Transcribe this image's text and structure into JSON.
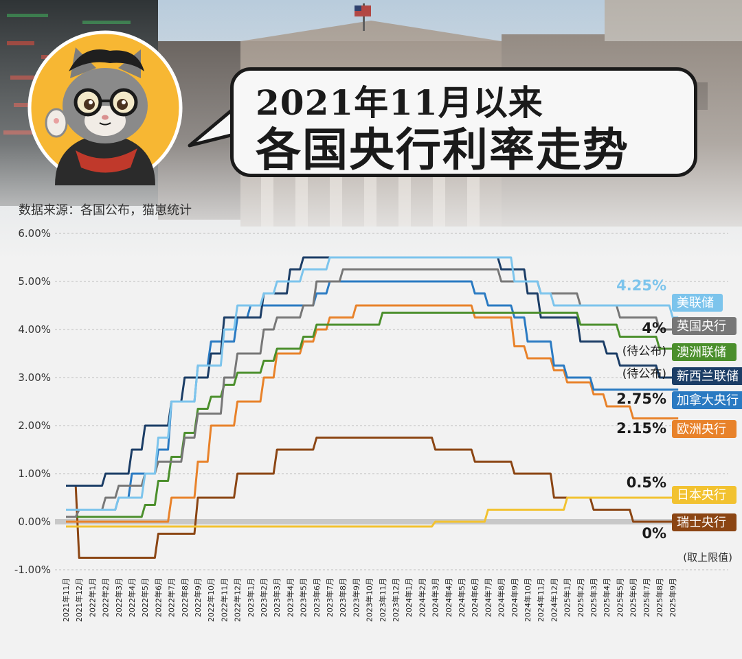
{
  "title": {
    "line1": "2021年11月以来",
    "line2": "各国央行利率走势"
  },
  "source": "数据来源：各国公布，猫崽统计",
  "chart_data": {
    "type": "line",
    "ylim": [
      -1,
      6
    ],
    "yticks": [
      "-1.00%",
      "0.00%",
      "1.00%",
      "2.00%",
      "3.00%",
      "4.00%",
      "5.00%",
      "6.00%"
    ],
    "footnote": "(取上限值)",
    "x": [
      "2021年11月",
      "2021年12月",
      "2022年1月",
      "2022年2月",
      "2022年3月",
      "2022年4月",
      "2022年5月",
      "2022年6月",
      "2022年7月",
      "2022年8月",
      "2022年9月",
      "2022年10月",
      "2022年11月",
      "2022年12月",
      "2023年1月",
      "2023年2月",
      "2023年3月",
      "2023年4月",
      "2023年5月",
      "2023年6月",
      "2023年7月",
      "2023年8月",
      "2023年9月",
      "2023年10月",
      "2023年11月",
      "2023年12月",
      "2024年1月",
      "2024年2月",
      "2024年3月",
      "2024年4月",
      "2024年5月",
      "2024年6月",
      "2024年7月",
      "2024年8月",
      "2024年9月",
      "2024年10月",
      "2024年11月",
      "2024年12月",
      "2025年1月",
      "2025年2月",
      "2025年3月",
      "2025年4月",
      "2025年5月",
      "2025年6月",
      "2025年7月",
      "2025年8月",
      "2025年9月"
    ],
    "series": [
      {
        "name": "瑞士央行",
        "color": "#8b4513",
        "value_label": "0%",
        "values": [
          0.75,
          -0.75,
          -0.75,
          -0.75,
          -0.75,
          -0.75,
          -0.75,
          -0.25,
          -0.25,
          -0.25,
          0.5,
          0.5,
          0.5,
          1.0,
          1.0,
          1.0,
          1.5,
          1.5,
          1.5,
          1.75,
          1.75,
          1.75,
          1.75,
          1.75,
          1.75,
          1.75,
          1.75,
          1.75,
          1.5,
          1.5,
          1.5,
          1.25,
          1.25,
          1.25,
          1.0,
          1.0,
          1.0,
          0.5,
          0.5,
          0.5,
          0.25,
          0.25,
          0.25,
          0.0,
          0.0,
          0.0,
          0.0
        ]
      },
      {
        "name": "日本央行",
        "color": "#f2c230",
        "value_label": "0.5%",
        "values": [
          -0.1,
          -0.1,
          -0.1,
          -0.1,
          -0.1,
          -0.1,
          -0.1,
          -0.1,
          -0.1,
          -0.1,
          -0.1,
          -0.1,
          -0.1,
          -0.1,
          -0.1,
          -0.1,
          -0.1,
          -0.1,
          -0.1,
          -0.1,
          -0.1,
          -0.1,
          -0.1,
          -0.1,
          -0.1,
          -0.1,
          -0.1,
          -0.1,
          0.0,
          0.0,
          0.0,
          0.0,
          0.25,
          0.25,
          0.25,
          0.25,
          0.25,
          0.25,
          0.5,
          0.5,
          0.5,
          0.5,
          0.5,
          0.5,
          0.5,
          0.5,
          0.5
        ]
      },
      {
        "name": "欧洲央行",
        "color": "#e8822a",
        "value_label": "2.15%",
        "values": [
          0.0,
          0.0,
          0.0,
          0.0,
          0.0,
          0.0,
          0.0,
          0.0,
          0.5,
          0.5,
          1.25,
          2.0,
          2.0,
          2.5,
          2.5,
          3.0,
          3.5,
          3.5,
          3.75,
          4.0,
          4.25,
          4.25,
          4.5,
          4.5,
          4.5,
          4.5,
          4.5,
          4.5,
          4.5,
          4.5,
          4.5,
          4.25,
          4.25,
          4.25,
          3.65,
          3.4,
          3.4,
          3.15,
          2.9,
          2.9,
          2.65,
          2.4,
          2.4,
          2.15,
          2.15,
          2.15,
          2.15
        ]
      },
      {
        "name": "加拿大央行",
        "color": "#2a7ac2",
        "value_label": "2.75%",
        "values": [
          0.25,
          0.25,
          0.25,
          0.25,
          0.5,
          1.0,
          1.0,
          1.5,
          2.5,
          2.5,
          3.25,
          3.75,
          3.75,
          4.25,
          4.5,
          4.5,
          4.5,
          4.5,
          4.5,
          4.75,
          5.0,
          5.0,
          5.0,
          5.0,
          5.0,
          5.0,
          5.0,
          5.0,
          5.0,
          5.0,
          5.0,
          4.75,
          4.5,
          4.5,
          4.25,
          3.75,
          3.75,
          3.25,
          3.0,
          3.0,
          2.75,
          2.75,
          2.75,
          2.75,
          2.75,
          2.75,
          2.75
        ]
      },
      {
        "name": "新西兰联储",
        "color": "#1b3d66",
        "value_label": "(待公布)",
        "values": [
          0.75,
          0.75,
          0.75,
          1.0,
          1.0,
          1.5,
          2.0,
          2.0,
          2.5,
          3.0,
          3.0,
          3.5,
          4.25,
          4.25,
          4.25,
          4.75,
          4.75,
          5.25,
          5.5,
          5.5,
          5.5,
          5.5,
          5.5,
          5.5,
          5.5,
          5.5,
          5.5,
          5.5,
          5.5,
          5.5,
          5.5,
          5.5,
          5.5,
          5.25,
          5.25,
          4.75,
          4.25,
          4.25,
          4.25,
          3.75,
          3.75,
          3.5,
          3.25,
          3.25,
          3.25,
          3.0,
          3.0
        ]
      },
      {
        "name": "澳洲联储",
        "color": "#4b8f2c",
        "value_label": "(待公布)",
        "values": [
          0.1,
          0.1,
          0.1,
          0.1,
          0.1,
          0.1,
          0.35,
          0.85,
          1.35,
          1.85,
          2.35,
          2.6,
          2.85,
          3.1,
          3.1,
          3.35,
          3.6,
          3.6,
          3.85,
          4.1,
          4.1,
          4.1,
          4.1,
          4.1,
          4.35,
          4.35,
          4.35,
          4.35,
          4.35,
          4.35,
          4.35,
          4.35,
          4.35,
          4.35,
          4.35,
          4.35,
          4.35,
          4.35,
          4.35,
          4.1,
          4.1,
          4.1,
          3.85,
          3.85,
          3.85,
          3.6,
          3.6
        ]
      },
      {
        "name": "英国央行",
        "color": "#777777",
        "value_label": "4%",
        "values": [
          0.1,
          0.25,
          0.25,
          0.5,
          0.75,
          0.75,
          1.0,
          1.25,
          1.25,
          1.75,
          2.25,
          2.25,
          3.0,
          3.5,
          3.5,
          4.0,
          4.25,
          4.25,
          4.5,
          5.0,
          5.0,
          5.25,
          5.25,
          5.25,
          5.25,
          5.25,
          5.25,
          5.25,
          5.25,
          5.25,
          5.25,
          5.25,
          5.25,
          5.0,
          5.0,
          5.0,
          4.75,
          4.75,
          4.75,
          4.5,
          4.5,
          4.5,
          4.25,
          4.25,
          4.25,
          4.0,
          4.0
        ]
      },
      {
        "name": "美联储",
        "color": "#7cc4ec",
        "value_label": "4.25%",
        "values": [
          0.25,
          0.25,
          0.25,
          0.25,
          0.5,
          0.5,
          1.0,
          1.75,
          2.5,
          2.5,
          3.25,
          3.25,
          4.0,
          4.5,
          4.5,
          4.75,
          5.0,
          5.0,
          5.25,
          5.25,
          5.5,
          5.5,
          5.5,
          5.5,
          5.5,
          5.5,
          5.5,
          5.5,
          5.5,
          5.5,
          5.5,
          5.5,
          5.5,
          5.5,
          5.0,
          5.0,
          4.75,
          4.5,
          4.5,
          4.5,
          4.5,
          4.5,
          4.5,
          4.5,
          4.5,
          4.5,
          4.25
        ]
      }
    ]
  }
}
